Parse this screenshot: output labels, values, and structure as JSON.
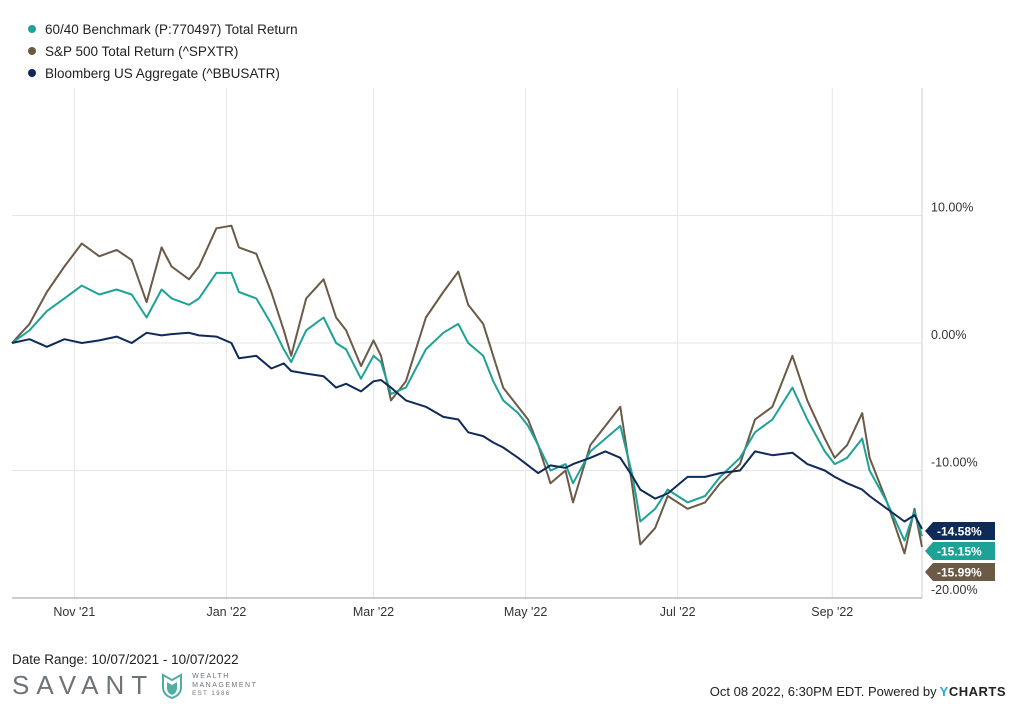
{
  "legend": [
    {
      "label": "60/40 Benchmark (P:770497) Total Return",
      "color": "#1ea296"
    },
    {
      "label": "S&P 500 Total Return (^SPXTR)",
      "color": "#6b5a46"
    },
    {
      "label": "Bloomberg US Aggregate (^BBUSATR)",
      "color": "#102a57"
    }
  ],
  "footer": {
    "date_range": "Date Range: 10/07/2021 - 10/07/2022",
    "timestamp": "Oct 08 2022, 6:30PM EDT. Powered by",
    "brand_y": "Y",
    "brand_rest": "CHARTS"
  },
  "logo": {
    "name": "SAVANT",
    "line1": "WEALTH",
    "line2": "MANAGEMENT",
    "line3": "EST 1986"
  },
  "chart_data": {
    "type": "line",
    "x_start": "2021-10-07",
    "x_end": "2022-10-07",
    "xticks": [
      {
        "date": "2021-11-01",
        "label": "Nov '21"
      },
      {
        "date": "2022-01-01",
        "label": "Jan '22"
      },
      {
        "date": "2022-03-01",
        "label": "Mar '22"
      },
      {
        "date": "2022-05-01",
        "label": "May '22"
      },
      {
        "date": "2022-07-01",
        "label": "Jul '22"
      },
      {
        "date": "2022-09-01",
        "label": "Sep '22"
      }
    ],
    "yticks": [
      10,
      0,
      -10,
      -20
    ],
    "ytick_labels": [
      "10.00%",
      "0.00%",
      "-10.00%",
      "-20.00%"
    ],
    "ylim": [
      -20,
      20
    ],
    "grid": true,
    "y_axis_side": "right",
    "series": [
      {
        "name": "S&P 500 Total Return (^SPXTR)",
        "color": "#6b5a46",
        "end_label": "-15.99%",
        "points": [
          [
            "2021-10-07",
            0.0
          ],
          [
            "2021-10-14",
            1.5
          ],
          [
            "2021-10-21",
            4.0
          ],
          [
            "2021-10-28",
            6.0
          ],
          [
            "2021-11-04",
            7.8
          ],
          [
            "2021-11-11",
            6.8
          ],
          [
            "2021-11-18",
            7.3
          ],
          [
            "2021-11-24",
            6.5
          ],
          [
            "2021-11-30",
            3.2
          ],
          [
            "2021-12-06",
            7.5
          ],
          [
            "2021-12-10",
            6.0
          ],
          [
            "2021-12-17",
            5.0
          ],
          [
            "2021-12-21",
            6.0
          ],
          [
            "2021-12-28",
            9.0
          ],
          [
            "2022-01-03",
            9.2
          ],
          [
            "2022-01-06",
            7.5
          ],
          [
            "2022-01-13",
            7.0
          ],
          [
            "2022-01-19",
            4.0
          ],
          [
            "2022-01-24",
            1.0
          ],
          [
            "2022-01-27",
            -1.0
          ],
          [
            "2022-02-02",
            3.5
          ],
          [
            "2022-02-09",
            5.0
          ],
          [
            "2022-02-14",
            2.0
          ],
          [
            "2022-02-18",
            1.0
          ],
          [
            "2022-02-24",
            -1.8
          ],
          [
            "2022-03-01",
            0.2
          ],
          [
            "2022-03-04",
            -1.0
          ],
          [
            "2022-03-08",
            -4.5
          ],
          [
            "2022-03-14",
            -3.0
          ],
          [
            "2022-03-22",
            2.0
          ],
          [
            "2022-03-29",
            4.0
          ],
          [
            "2022-04-04",
            5.6
          ],
          [
            "2022-04-08",
            3.0
          ],
          [
            "2022-04-14",
            1.5
          ],
          [
            "2022-04-18",
            -1.0
          ],
          [
            "2022-04-22",
            -3.5
          ],
          [
            "2022-04-28",
            -5.0
          ],
          [
            "2022-05-02",
            -6.0
          ],
          [
            "2022-05-06",
            -8.0
          ],
          [
            "2022-05-11",
            -11.0
          ],
          [
            "2022-05-17",
            -10.0
          ],
          [
            "2022-05-20",
            -12.5
          ],
          [
            "2022-05-27",
            -8.0
          ],
          [
            "2022-06-02",
            -6.5
          ],
          [
            "2022-06-08",
            -5.0
          ],
          [
            "2022-06-13",
            -11.5
          ],
          [
            "2022-06-16",
            -15.8
          ],
          [
            "2022-06-22",
            -14.5
          ],
          [
            "2022-06-27",
            -12.0
          ],
          [
            "2022-07-05",
            -13.0
          ],
          [
            "2022-07-12",
            -12.5
          ],
          [
            "2022-07-18",
            -11.0
          ],
          [
            "2022-07-26",
            -9.5
          ],
          [
            "2022-08-01",
            -6.0
          ],
          [
            "2022-08-08",
            -5.0
          ],
          [
            "2022-08-16",
            -1.0
          ],
          [
            "2022-08-22",
            -4.5
          ],
          [
            "2022-08-29",
            -7.5
          ],
          [
            "2022-09-02",
            -9.0
          ],
          [
            "2022-09-07",
            -8.0
          ],
          [
            "2022-09-13",
            -5.5
          ],
          [
            "2022-09-16",
            -9.0
          ],
          [
            "2022-09-23",
            -12.5
          ],
          [
            "2022-09-30",
            -16.5
          ],
          [
            "2022-10-04",
            -13.0
          ],
          [
            "2022-10-07",
            -15.99
          ]
        ]
      },
      {
        "name": "60/40 Benchmark (P:770497) Total Return",
        "color": "#1ea296",
        "end_label": "-15.15%",
        "points": [
          [
            "2021-10-07",
            0.0
          ],
          [
            "2021-10-14",
            1.0
          ],
          [
            "2021-10-21",
            2.5
          ],
          [
            "2021-10-28",
            3.5
          ],
          [
            "2021-11-04",
            4.5
          ],
          [
            "2021-11-11",
            3.8
          ],
          [
            "2021-11-18",
            4.2
          ],
          [
            "2021-11-24",
            3.8
          ],
          [
            "2021-11-30",
            2.0
          ],
          [
            "2021-12-06",
            4.2
          ],
          [
            "2021-12-10",
            3.5
          ],
          [
            "2021-12-17",
            3.0
          ],
          [
            "2021-12-21",
            3.5
          ],
          [
            "2021-12-28",
            5.5
          ],
          [
            "2022-01-03",
            5.5
          ],
          [
            "2022-01-06",
            4.0
          ],
          [
            "2022-01-13",
            3.5
          ],
          [
            "2022-01-19",
            1.5
          ],
          [
            "2022-01-24",
            -0.5
          ],
          [
            "2022-01-27",
            -1.5
          ],
          [
            "2022-02-02",
            1.0
          ],
          [
            "2022-02-09",
            2.0
          ],
          [
            "2022-02-14",
            0.0
          ],
          [
            "2022-02-18",
            -0.5
          ],
          [
            "2022-02-24",
            -2.8
          ],
          [
            "2022-03-01",
            -1.0
          ],
          [
            "2022-03-04",
            -1.5
          ],
          [
            "2022-03-08",
            -4.0
          ],
          [
            "2022-03-14",
            -3.5
          ],
          [
            "2022-03-22",
            -0.5
          ],
          [
            "2022-03-29",
            0.8
          ],
          [
            "2022-04-04",
            1.5
          ],
          [
            "2022-04-08",
            0.0
          ],
          [
            "2022-04-14",
            -1.0
          ],
          [
            "2022-04-18",
            -3.0
          ],
          [
            "2022-04-22",
            -4.5
          ],
          [
            "2022-04-28",
            -5.5
          ],
          [
            "2022-05-02",
            -6.5
          ],
          [
            "2022-05-06",
            -8.0
          ],
          [
            "2022-05-11",
            -10.0
          ],
          [
            "2022-05-17",
            -9.5
          ],
          [
            "2022-05-20",
            -11.0
          ],
          [
            "2022-05-27",
            -8.5
          ],
          [
            "2022-06-02",
            -7.5
          ],
          [
            "2022-06-08",
            -6.5
          ],
          [
            "2022-06-13",
            -10.5
          ],
          [
            "2022-06-16",
            -14.0
          ],
          [
            "2022-06-22",
            -13.0
          ],
          [
            "2022-06-27",
            -11.5
          ],
          [
            "2022-07-05",
            -12.5
          ],
          [
            "2022-07-12",
            -12.0
          ],
          [
            "2022-07-18",
            -10.5
          ],
          [
            "2022-07-26",
            -9.0
          ],
          [
            "2022-08-01",
            -7.0
          ],
          [
            "2022-08-08",
            -6.0
          ],
          [
            "2022-08-16",
            -3.5
          ],
          [
            "2022-08-22",
            -6.0
          ],
          [
            "2022-08-29",
            -8.5
          ],
          [
            "2022-09-02",
            -9.5
          ],
          [
            "2022-09-07",
            -9.0
          ],
          [
            "2022-09-13",
            -7.5
          ],
          [
            "2022-09-16",
            -10.0
          ],
          [
            "2022-09-23",
            -12.5
          ],
          [
            "2022-09-30",
            -15.5
          ],
          [
            "2022-10-04",
            -13.2
          ],
          [
            "2022-10-07",
            -15.15
          ]
        ]
      },
      {
        "name": "Bloomberg US Aggregate (^BBUSATR)",
        "color": "#102a57",
        "end_label": "-14.58%",
        "points": [
          [
            "2021-10-07",
            0.0
          ],
          [
            "2021-10-14",
            0.3
          ],
          [
            "2021-10-21",
            -0.3
          ],
          [
            "2021-10-28",
            0.3
          ],
          [
            "2021-11-04",
            0.0
          ],
          [
            "2021-11-11",
            0.2
          ],
          [
            "2021-11-18",
            0.5
          ],
          [
            "2021-11-24",
            0.0
          ],
          [
            "2021-11-30",
            0.8
          ],
          [
            "2021-12-06",
            0.6
          ],
          [
            "2021-12-10",
            0.7
          ],
          [
            "2021-12-17",
            0.8
          ],
          [
            "2021-12-21",
            0.6
          ],
          [
            "2021-12-28",
            0.5
          ],
          [
            "2022-01-03",
            0.0
          ],
          [
            "2022-01-06",
            -1.2
          ],
          [
            "2022-01-13",
            -1.0
          ],
          [
            "2022-01-19",
            -2.0
          ],
          [
            "2022-01-24",
            -1.6
          ],
          [
            "2022-01-27",
            -2.2
          ],
          [
            "2022-02-02",
            -2.4
          ],
          [
            "2022-02-09",
            -2.6
          ],
          [
            "2022-02-14",
            -3.5
          ],
          [
            "2022-02-18",
            -3.2
          ],
          [
            "2022-02-24",
            -3.8
          ],
          [
            "2022-03-01",
            -3.0
          ],
          [
            "2022-03-04",
            -2.9
          ],
          [
            "2022-03-08",
            -3.5
          ],
          [
            "2022-03-14",
            -4.5
          ],
          [
            "2022-03-22",
            -5.0
          ],
          [
            "2022-03-29",
            -5.8
          ],
          [
            "2022-04-04",
            -6.0
          ],
          [
            "2022-04-08",
            -7.0
          ],
          [
            "2022-04-14",
            -7.3
          ],
          [
            "2022-04-18",
            -7.8
          ],
          [
            "2022-04-22",
            -8.2
          ],
          [
            "2022-04-28",
            -9.0
          ],
          [
            "2022-05-02",
            -9.6
          ],
          [
            "2022-05-06",
            -10.2
          ],
          [
            "2022-05-11",
            -9.6
          ],
          [
            "2022-05-17",
            -9.8
          ],
          [
            "2022-05-20",
            -9.5
          ],
          [
            "2022-05-27",
            -9.0
          ],
          [
            "2022-06-02",
            -8.5
          ],
          [
            "2022-06-08",
            -9.0
          ],
          [
            "2022-06-13",
            -10.5
          ],
          [
            "2022-06-16",
            -11.5
          ],
          [
            "2022-06-22",
            -12.2
          ],
          [
            "2022-06-27",
            -11.8
          ],
          [
            "2022-07-05",
            -10.5
          ],
          [
            "2022-07-12",
            -10.5
          ],
          [
            "2022-07-18",
            -10.2
          ],
          [
            "2022-07-26",
            -10.0
          ],
          [
            "2022-08-01",
            -8.5
          ],
          [
            "2022-08-08",
            -8.8
          ],
          [
            "2022-08-16",
            -8.6
          ],
          [
            "2022-08-22",
            -9.5
          ],
          [
            "2022-08-29",
            -10.0
          ],
          [
            "2022-09-02",
            -10.5
          ],
          [
            "2022-09-07",
            -11.0
          ],
          [
            "2022-09-13",
            -11.5
          ],
          [
            "2022-09-16",
            -12.0
          ],
          [
            "2022-09-23",
            -13.0
          ],
          [
            "2022-09-30",
            -14.0
          ],
          [
            "2022-10-04",
            -13.5
          ],
          [
            "2022-10-07",
            -14.58
          ]
        ]
      }
    ]
  }
}
